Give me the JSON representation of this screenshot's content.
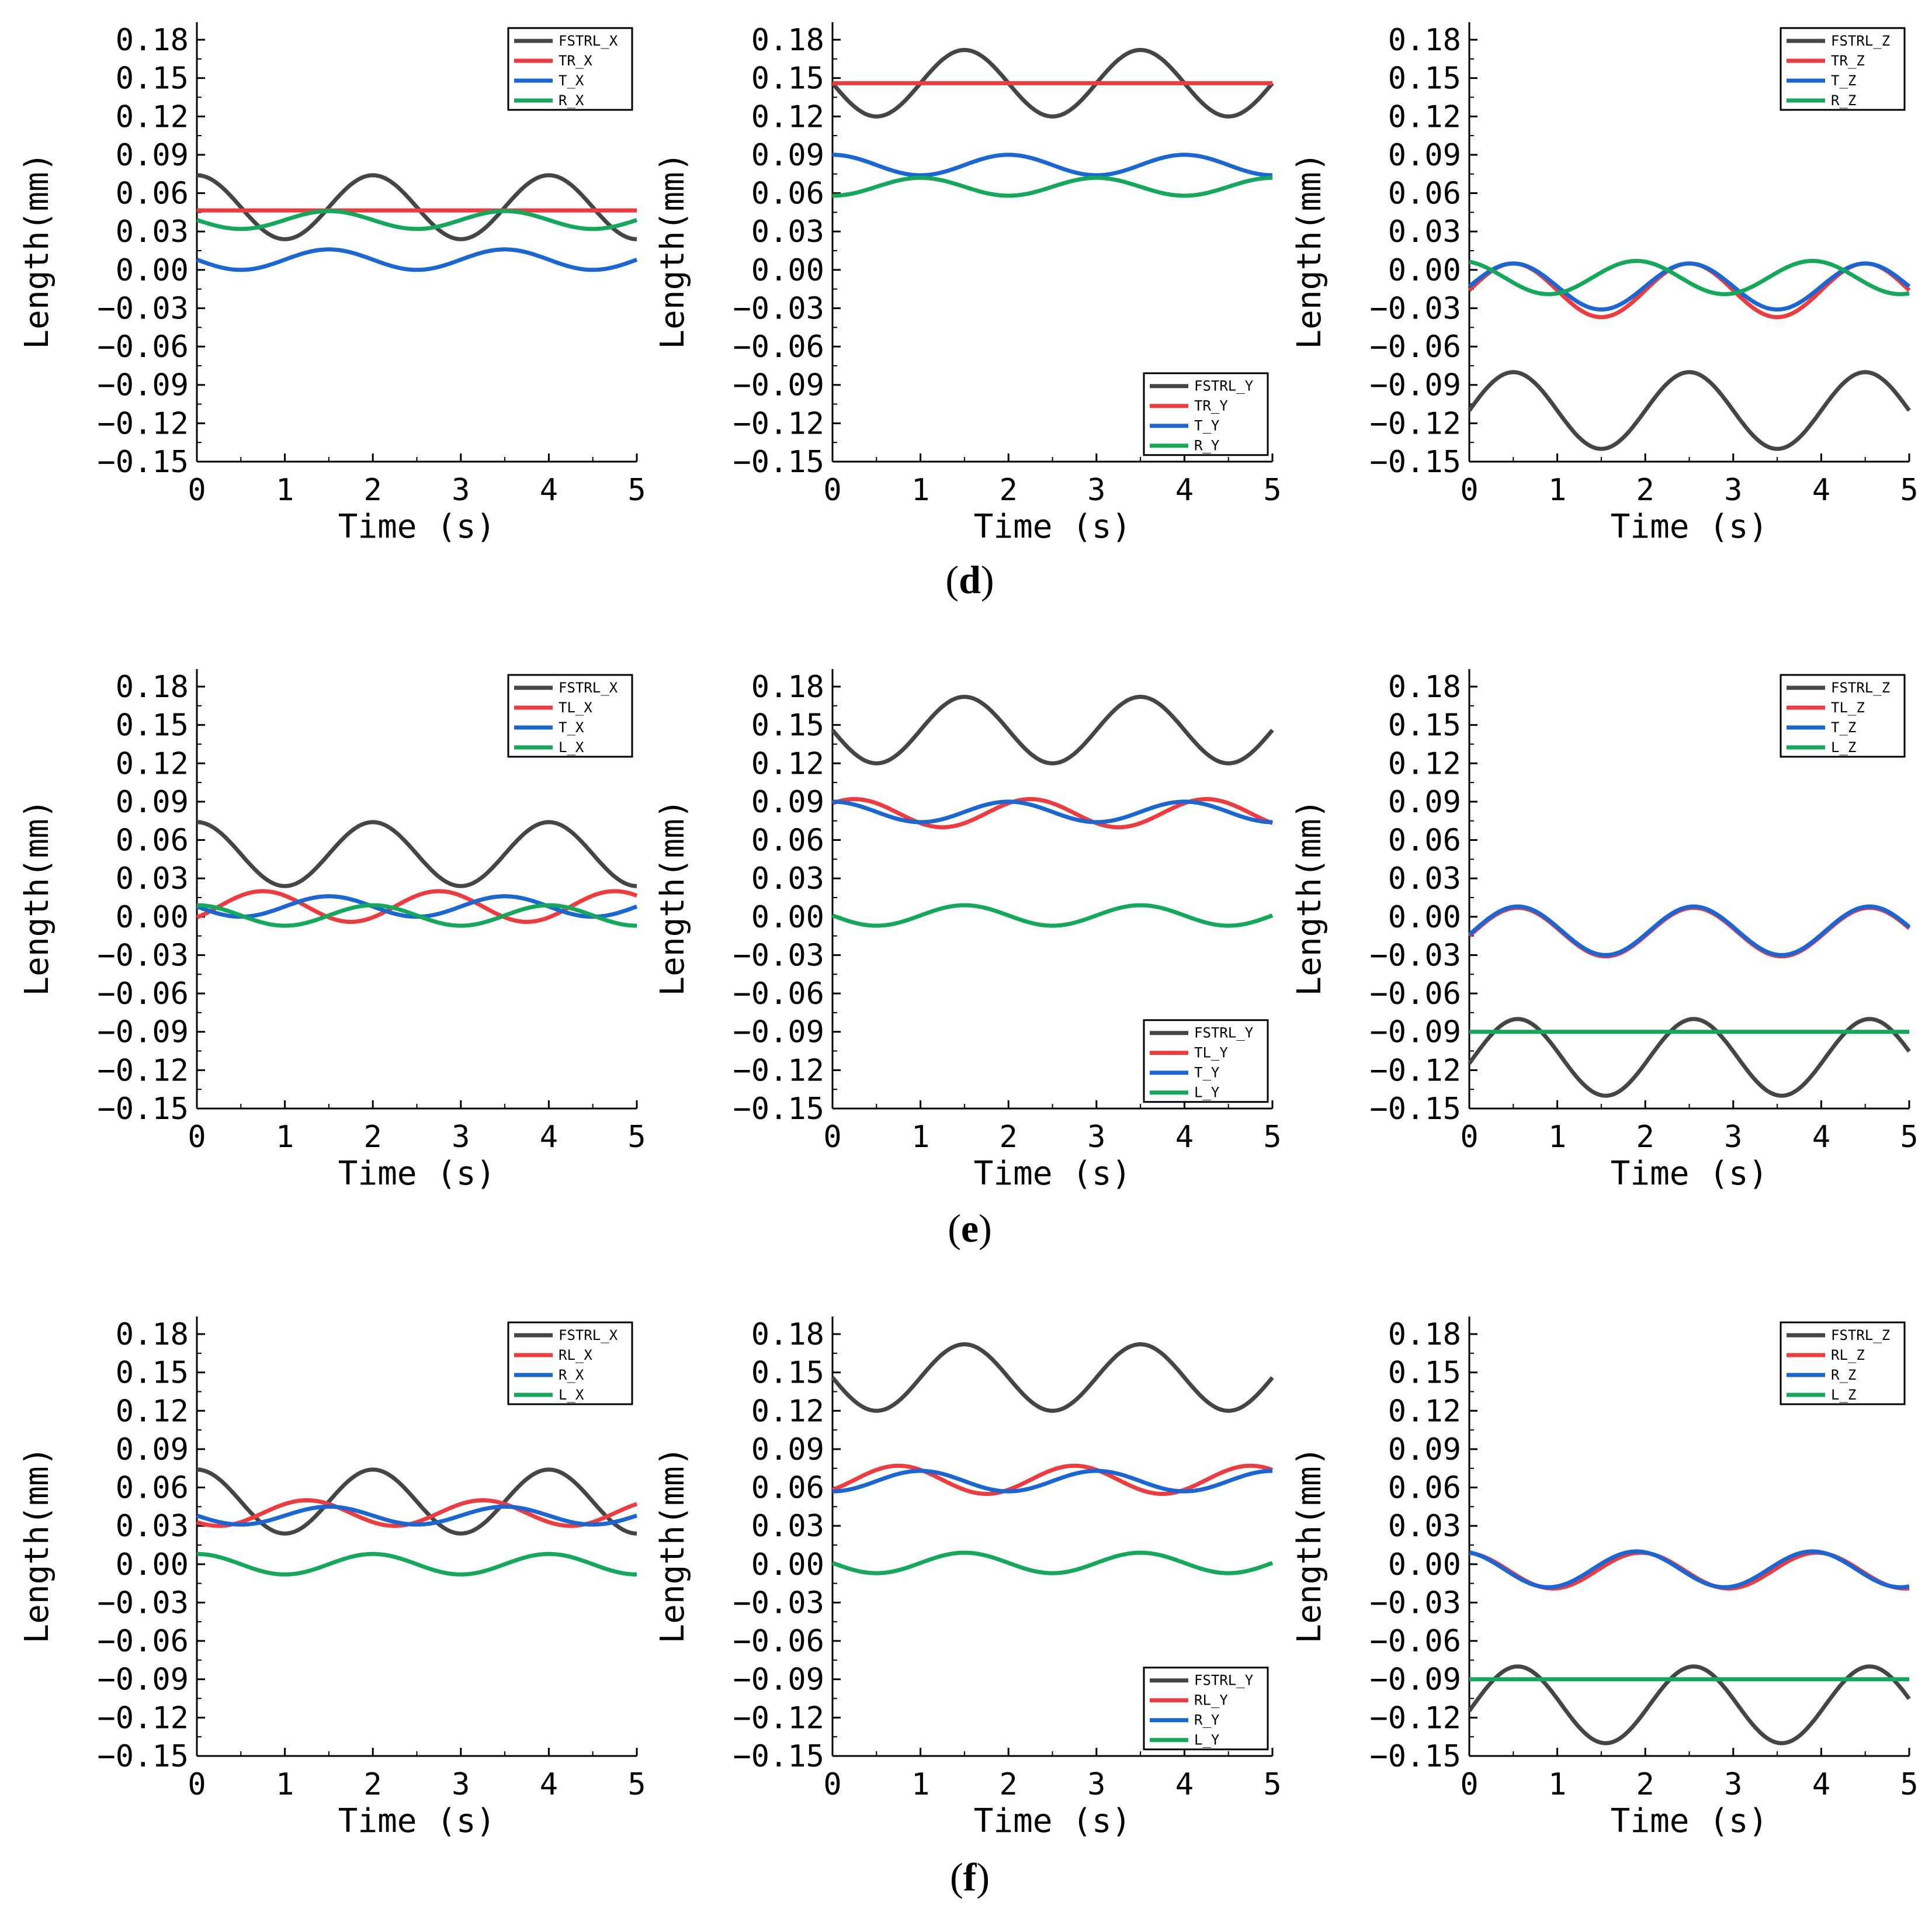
{
  "colors": {
    "FSTRL": "#454545",
    "red": "#ef3b3e",
    "blue": "#1a66d4",
    "green": "#14a85a"
  },
  "axis_labels": {
    "xlabel": "Time (s)",
    "ylabel": "Length(mm)"
  },
  "captions": [
    {
      "open": "(",
      "letter": "d",
      "close": ")"
    },
    {
      "open": "(",
      "letter": "e",
      "close": ")"
    },
    {
      "open": "(",
      "letter": "f",
      "close": ")"
    }
  ],
  "chart_data": [
    {
      "type": "line",
      "panel": "d-X",
      "xlabel": "Time (s)",
      "ylabel": "Length(mm)",
      "xlim": [
        0,
        5
      ],
      "ylim": [
        -0.15,
        0.18
      ],
      "xticks": [
        "0",
        "1",
        "2",
        "3",
        "4",
        "5"
      ],
      "yticks": [
        "0.18",
        "0.15",
        "0.12",
        "0.09",
        "0.06",
        "0.03",
        "0.00",
        "-0.03",
        "-0.06",
        "-0.09",
        "-0.12",
        "-0.15"
      ],
      "legend_position": "top-right",
      "series": [
        {
          "name": "FSTRL_X",
          "color": "FSTRL",
          "mean": 0.049,
          "amp": 0.025,
          "period": 2,
          "phase": 0
        },
        {
          "name": "TR_X",
          "color": "red",
          "mean": 0.0465,
          "amp": 0.0,
          "period": 2,
          "phase": 0
        },
        {
          "name": "T_X",
          "color": "blue",
          "mean": 0.008,
          "amp": 0.008,
          "period": 2,
          "phase": -0.5
        },
        {
          "name": "R_X",
          "color": "green",
          "mean": 0.039,
          "amp": 0.007,
          "period": 2,
          "phase": 1.5
        }
      ]
    },
    {
      "type": "line",
      "panel": "d-Y",
      "xlabel": "Time (s)",
      "ylabel": "Length(mm)",
      "xlim": [
        0,
        5
      ],
      "ylim": [
        -0.15,
        0.18
      ],
      "xticks": [
        "0",
        "1",
        "2",
        "3",
        "4",
        "5"
      ],
      "yticks": [
        "0.18",
        "0.15",
        "0.12",
        "0.09",
        "0.06",
        "0.03",
        "0.00",
        "-0.03",
        "-0.06",
        "-0.09",
        "-0.12",
        "-0.15"
      ],
      "legend_position": "bottom-right",
      "series": [
        {
          "name": "FSTRL_Y",
          "color": "FSTRL",
          "mean": 0.146,
          "amp": 0.026,
          "period": 2,
          "phase": 1.5
        },
        {
          "name": "TR_Y",
          "color": "red",
          "mean": 0.146,
          "amp": 0.0,
          "period": 2,
          "phase": 0
        },
        {
          "name": "T_Y",
          "color": "blue",
          "mean": 0.082,
          "amp": 0.008,
          "period": 2,
          "phase": 0
        },
        {
          "name": "R_Y",
          "color": "green",
          "mean": 0.065,
          "amp": 0.007,
          "period": 2,
          "phase": 1
        }
      ]
    },
    {
      "type": "line",
      "panel": "d-Z",
      "xlabel": "Time (s)",
      "ylabel": "Length(mm)",
      "xlim": [
        0,
        5
      ],
      "ylim": [
        -0.15,
        0.18
      ],
      "xticks": [
        "0",
        "1",
        "2",
        "3",
        "4",
        "5"
      ],
      "yticks": [
        "0.18",
        "0.15",
        "0.12",
        "0.09",
        "0.06",
        "0.03",
        "0.00",
        "-0.03",
        "-0.06",
        "-0.09",
        "-0.12",
        "-0.15"
      ],
      "legend_position": "top-right",
      "series": [
        {
          "name": "FSTRL_Z",
          "color": "FSTRL",
          "mean": -0.11,
          "amp": 0.03,
          "period": 2,
          "phase": 0.5
        },
        {
          "name": "TR_Z",
          "color": "red",
          "mean": -0.016,
          "amp": 0.021,
          "period": 2,
          "phase": 0.5
        },
        {
          "name": "T_Z",
          "color": "blue",
          "mean": -0.013,
          "amp": 0.018,
          "period": 2,
          "phase": 0.5
        },
        {
          "name": "R_Z",
          "color": "green",
          "mean": -0.006,
          "amp": 0.013,
          "period": 2,
          "phase": 1.9
        }
      ]
    },
    {
      "type": "line",
      "panel": "e-X",
      "xlabel": "Time (s)",
      "ylabel": "Length(mm)",
      "xlim": [
        0,
        5
      ],
      "ylim": [
        -0.15,
        0.18
      ],
      "xticks": [
        "0",
        "1",
        "2",
        "3",
        "4",
        "5"
      ],
      "yticks": [
        "0.18",
        "0.15",
        "0.12",
        "0.09",
        "0.06",
        "0.03",
        "0.00",
        "-0.03",
        "-0.06",
        "-0.09",
        "-0.12",
        "-0.15"
      ],
      "legend_position": "top-right",
      "series": [
        {
          "name": "FSTRL_X",
          "color": "FSTRL",
          "mean": 0.049,
          "amp": 0.025,
          "period": 2,
          "phase": 0
        },
        {
          "name": "TL_X",
          "color": "red",
          "mean": 0.008,
          "amp": 0.012,
          "period": 2,
          "phase": 0.75
        },
        {
          "name": "T_X",
          "color": "blue",
          "mean": 0.008,
          "amp": 0.008,
          "period": 2,
          "phase": -0.5
        },
        {
          "name": "L_X",
          "color": "green",
          "mean": 0.001,
          "amp": 0.008,
          "period": 2,
          "phase": 0
        }
      ]
    },
    {
      "type": "line",
      "panel": "e-Y",
      "xlabel": "Time (s)",
      "ylabel": "Length(mm)",
      "xlim": [
        0,
        5
      ],
      "ylim": [
        -0.15,
        0.18
      ],
      "xticks": [
        "0",
        "1",
        "2",
        "3",
        "4",
        "5"
      ],
      "yticks": [
        "0.18",
        "0.15",
        "0.12",
        "0.09",
        "0.06",
        "0.03",
        "0.00",
        "-0.03",
        "-0.06",
        "-0.09",
        "-0.12",
        "-0.15"
      ],
      "legend_position": "bottom-right",
      "series": [
        {
          "name": "FSTRL_Y",
          "color": "FSTRL",
          "mean": 0.146,
          "amp": 0.026,
          "period": 2,
          "phase": 1.5
        },
        {
          "name": "TL_Y",
          "color": "red",
          "mean": 0.081,
          "amp": 0.011,
          "period": 2,
          "phase": 0.25
        },
        {
          "name": "T_Y",
          "color": "blue",
          "mean": 0.082,
          "amp": 0.008,
          "period": 2,
          "phase": 0
        },
        {
          "name": "L_Y",
          "color": "green",
          "mean": 0.001,
          "amp": 0.008,
          "period": 2,
          "phase": 1.5
        }
      ]
    },
    {
      "type": "line",
      "panel": "e-Z",
      "xlabel": "Time (s)",
      "ylabel": "Length(mm)",
      "xlim": [
        0,
        5
      ],
      "ylim": [
        -0.15,
        0.18
      ],
      "xticks": [
        "0",
        "1",
        "2",
        "3",
        "4",
        "5"
      ],
      "yticks": [
        "0.18",
        "0.15",
        "0.12",
        "0.09",
        "0.06",
        "0.03",
        "0.00",
        "-0.03",
        "-0.06",
        "-0.09",
        "-0.12",
        "-0.15"
      ],
      "legend_position": "top-right",
      "series": [
        {
          "name": "FSTRL_Z",
          "color": "FSTRL",
          "mean": -0.11,
          "amp": 0.03,
          "period": 2,
          "phase": 0.55
        },
        {
          "name": "TL_Z",
          "color": "red",
          "mean": -0.012,
          "amp": 0.019,
          "period": 2,
          "phase": 0.55
        },
        {
          "name": "T_Z",
          "color": "blue",
          "mean": -0.011,
          "amp": 0.019,
          "period": 2,
          "phase": 0.55
        },
        {
          "name": "L_Z",
          "color": "green",
          "mean": -0.09,
          "amp": 0.0,
          "period": 2,
          "phase": 0
        }
      ]
    },
    {
      "type": "line",
      "panel": "f-X",
      "xlabel": "Time (s)",
      "ylabel": "Length(mm)",
      "xlim": [
        0,
        5
      ],
      "ylim": [
        -0.15,
        0.18
      ],
      "xticks": [
        "0",
        "1",
        "2",
        "3",
        "4",
        "5"
      ],
      "yticks": [
        "0.18",
        "0.15",
        "0.12",
        "0.09",
        "0.06",
        "0.03",
        "0.00",
        "-0.03",
        "-0.06",
        "-0.09",
        "-0.12",
        "-0.15"
      ],
      "legend_position": "top-right",
      "series": [
        {
          "name": "FSTRL_X",
          "color": "FSTRL",
          "mean": 0.049,
          "amp": 0.025,
          "period": 2,
          "phase": 0
        },
        {
          "name": "RL_X",
          "color": "red",
          "mean": 0.04,
          "amp": 0.01,
          "period": 2,
          "phase": 1.25
        },
        {
          "name": "R_X",
          "color": "blue",
          "mean": 0.038,
          "amp": 0.007,
          "period": 2,
          "phase": 1.5
        },
        {
          "name": "L_X",
          "color": "green",
          "mean": 0.0,
          "amp": 0.008,
          "period": 2,
          "phase": 0
        }
      ]
    },
    {
      "type": "line",
      "panel": "f-Y",
      "xlabel": "Time (s)",
      "ylabel": "Length(mm)",
      "xlim": [
        0,
        5
      ],
      "ylim": [
        -0.15,
        0.18
      ],
      "xticks": [
        "0",
        "1",
        "2",
        "3",
        "4",
        "5"
      ],
      "yticks": [
        "0.18",
        "0.15",
        "0.12",
        "0.09",
        "0.06",
        "0.03",
        "0.00",
        "-0.03",
        "-0.06",
        "-0.09",
        "-0.12",
        "-0.15"
      ],
      "legend_position": "bottom-right",
      "series": [
        {
          "name": "FSTRL_Y",
          "color": "FSTRL",
          "mean": 0.146,
          "amp": 0.026,
          "period": 2,
          "phase": 1.5
        },
        {
          "name": "RL_Y",
          "color": "red",
          "mean": 0.066,
          "amp": 0.011,
          "period": 2,
          "phase": 0.75
        },
        {
          "name": "R_Y",
          "color": "blue",
          "mean": 0.065,
          "amp": 0.008,
          "period": 2,
          "phase": 1
        },
        {
          "name": "L_Y",
          "color": "green",
          "mean": 0.001,
          "amp": 0.008,
          "period": 2,
          "phase": 1.5
        }
      ]
    },
    {
      "type": "line",
      "panel": "f-Z",
      "xlabel": "Time (s)",
      "ylabel": "Length(mm)",
      "xlim": [
        0,
        5
      ],
      "ylim": [
        -0.15,
        0.18
      ],
      "xticks": [
        "0",
        "1",
        "2",
        "3",
        "4",
        "5"
      ],
      "yticks": [
        "0.18",
        "0.15",
        "0.12",
        "0.09",
        "0.06",
        "0.03",
        "0.00",
        "-0.03",
        "-0.06",
        "-0.09",
        "-0.12",
        "-0.15"
      ],
      "legend_position": "top-right",
      "series": [
        {
          "name": "FSTRL_Z",
          "color": "FSTRL",
          "mean": -0.11,
          "amp": 0.03,
          "period": 2,
          "phase": 0.55
        },
        {
          "name": "RL_Z",
          "color": "red",
          "mean": -0.005,
          "amp": 0.014,
          "period": 2,
          "phase": 1.95
        },
        {
          "name": "R_Z",
          "color": "blue",
          "mean": -0.004,
          "amp": 0.014,
          "period": 2,
          "phase": 1.9
        },
        {
          "name": "L_Z",
          "color": "green",
          "mean": -0.09,
          "amp": 0.0,
          "period": 2,
          "phase": 0
        }
      ]
    }
  ]
}
